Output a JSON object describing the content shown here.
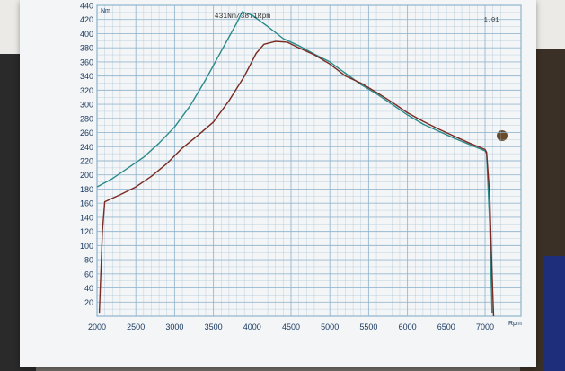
{
  "chart_data": {
    "type": "line",
    "annotation": "431Nm/3871Rpm",
    "corner_label": "1.01",
    "y_unit": "Nm",
    "x_unit": "Rpm",
    "xlim": [
      2000,
      7250
    ],
    "ylim": [
      0,
      440
    ],
    "x_ticks": [
      2000,
      2500,
      3000,
      3500,
      4000,
      4500,
      5000,
      5500,
      6000,
      6500,
      7000
    ],
    "y_ticks": [
      20,
      40,
      60,
      80,
      100,
      120,
      140,
      160,
      180,
      200,
      220,
      240,
      260,
      280,
      300,
      320,
      340,
      360,
      380,
      400,
      420,
      440
    ],
    "grid": true,
    "colors": {
      "grid": "#8fb3cc",
      "axis_text": "#1a3a63",
      "series_1": "#2a8a8a",
      "series_2": "#7a2a22"
    },
    "series": [
      {
        "values": [
          [
            2000,
            183
          ],
          [
            2200,
            195
          ],
          [
            2400,
            210
          ],
          [
            2600,
            225
          ],
          [
            2800,
            245
          ],
          [
            3000,
            268
          ],
          [
            3200,
            298
          ],
          [
            3400,
            335
          ],
          [
            3600,
            375
          ],
          [
            3800,
            415
          ],
          [
            3871,
            431
          ],
          [
            4000,
            426
          ],
          [
            4200,
            410
          ],
          [
            4400,
            393
          ],
          [
            4600,
            383
          ],
          [
            4800,
            371
          ],
          [
            5000,
            360
          ],
          [
            5200,
            344
          ],
          [
            5400,
            328
          ],
          [
            5600,
            315
          ],
          [
            5800,
            300
          ],
          [
            6000,
            285
          ],
          [
            6200,
            272
          ],
          [
            6400,
            262
          ],
          [
            6600,
            252
          ],
          [
            6800,
            243
          ],
          [
            7000,
            234
          ],
          [
            7020,
            230
          ],
          [
            7060,
            130
          ],
          [
            7090,
            5
          ]
        ]
      },
      {
        "values": [
          [
            2030,
            5
          ],
          [
            2070,
            120
          ],
          [
            2100,
            162
          ],
          [
            2300,
            172
          ],
          [
            2500,
            183
          ],
          [
            2700,
            198
          ],
          [
            2900,
            216
          ],
          [
            3100,
            238
          ],
          [
            3300,
            256
          ],
          [
            3500,
            275
          ],
          [
            3700,
            305
          ],
          [
            3900,
            340
          ],
          [
            4050,
            372
          ],
          [
            4150,
            385
          ],
          [
            4300,
            389
          ],
          [
            4450,
            388
          ],
          [
            4600,
            380
          ],
          [
            4800,
            370
          ],
          [
            5000,
            357
          ],
          [
            5200,
            340
          ],
          [
            5400,
            330
          ],
          [
            5600,
            317
          ],
          [
            5800,
            303
          ],
          [
            6000,
            288
          ],
          [
            6200,
            276
          ],
          [
            6400,
            265
          ],
          [
            6600,
            255
          ],
          [
            6800,
            245
          ],
          [
            7000,
            236
          ],
          [
            7020,
            232
          ],
          [
            7060,
            170
          ],
          [
            7090,
            60
          ],
          [
            7110,
            0
          ]
        ]
      }
    ]
  }
}
